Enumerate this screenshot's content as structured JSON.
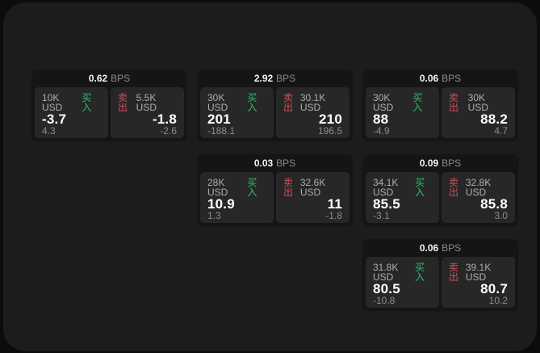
{
  "labels": {
    "bps_unit": "BPS",
    "buy": "买入",
    "sell": "卖出"
  },
  "colors": {
    "page_background": "#0c0c0c",
    "surface_background": "#1c1c1c",
    "card_background": "#151515",
    "panel_background": "#272727",
    "buy_accent": "#2fbe74",
    "sell_accent": "#cf4f5c",
    "value_text": "#ffffff",
    "muted_text": "#8c8c8c"
  },
  "cards": [
    {
      "bps": "0.62",
      "buy_amount": "10K USD",
      "buy_value": "-3.7",
      "buy_sub": "4.3",
      "sell_amount": "5.5K USD",
      "sell_value": "-1.8",
      "sell_sub": "-2.6"
    },
    {
      "bps": "2.92",
      "buy_amount": "30K USD",
      "buy_value": "201",
      "buy_sub": "-188.1",
      "sell_amount": "30.1K USD",
      "sell_value": "210",
      "sell_sub": "196.5"
    },
    {
      "bps": "0.06",
      "buy_amount": "30K USD",
      "buy_value": "88",
      "buy_sub": "-4.9",
      "sell_amount": "30K USD",
      "sell_value": "88.2",
      "sell_sub": "4.7"
    },
    {
      "bps": "0.03",
      "buy_amount": "28K USD",
      "buy_value": "10.9",
      "buy_sub": "1.3",
      "sell_amount": "32.6K USD",
      "sell_value": "11",
      "sell_sub": "-1.8"
    },
    {
      "bps": "0.09",
      "buy_amount": "34.1K USD",
      "buy_value": "85.5",
      "buy_sub": "-3.1",
      "sell_amount": "32.8K USD",
      "sell_value": "85.8",
      "sell_sub": "3.0"
    },
    {
      "bps": "0.06",
      "buy_amount": "31.8K USD",
      "buy_value": "80.5",
      "buy_sub": "-10.8",
      "sell_amount": "39.1K USD",
      "sell_value": "80.7",
      "sell_sub": "10.2"
    }
  ]
}
